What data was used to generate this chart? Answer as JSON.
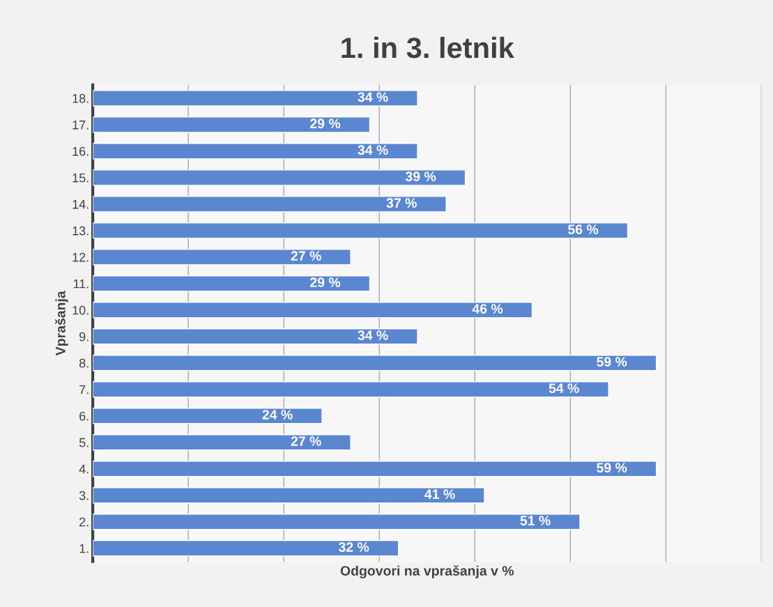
{
  "chart_data": {
    "type": "bar",
    "orientation": "horizontal",
    "title": "1. in 3. letnik",
    "xlabel": "Odgovori na vprašanja v %",
    "ylabel": "Vprašanja",
    "categories": [
      "18.",
      "17.",
      "16.",
      "15.",
      "14.",
      "13.",
      "12.",
      "11.",
      "10.",
      "9.",
      "8.",
      "7.",
      "6.",
      "5.",
      "4.",
      "3.",
      "2.",
      "1."
    ],
    "values": [
      34,
      29,
      34,
      39,
      37,
      56,
      27,
      29,
      46,
      34,
      59,
      54,
      24,
      27,
      59,
      41,
      51,
      32
    ],
    "value_labels": [
      "34 %",
      "29 %",
      "34 %",
      "39 %",
      "37 %",
      "56 %",
      "27 %",
      "29 %",
      "46 %",
      "34 %",
      "59 %",
      "54 %",
      "24 %",
      "27 %",
      "59 %",
      "41 %",
      "51 %",
      "32 %"
    ],
    "color": "#5b86d0",
    "xlim": [
      0,
      70
    ],
    "xticks": [
      {
        "value": 0,
        "label": null
      },
      {
        "value": 10,
        "label": null
      },
      {
        "value": 20,
        "label": null
      },
      {
        "value": 30,
        "label": null
      },
      {
        "value": 40,
        "label": null
      },
      {
        "value": 50,
        "label": null
      },
      {
        "value": 60,
        "label": null
      },
      {
        "value": 70,
        "label": null
      }
    ],
    "tick_labels": "y",
    "grid": "x",
    "legend": false
  }
}
